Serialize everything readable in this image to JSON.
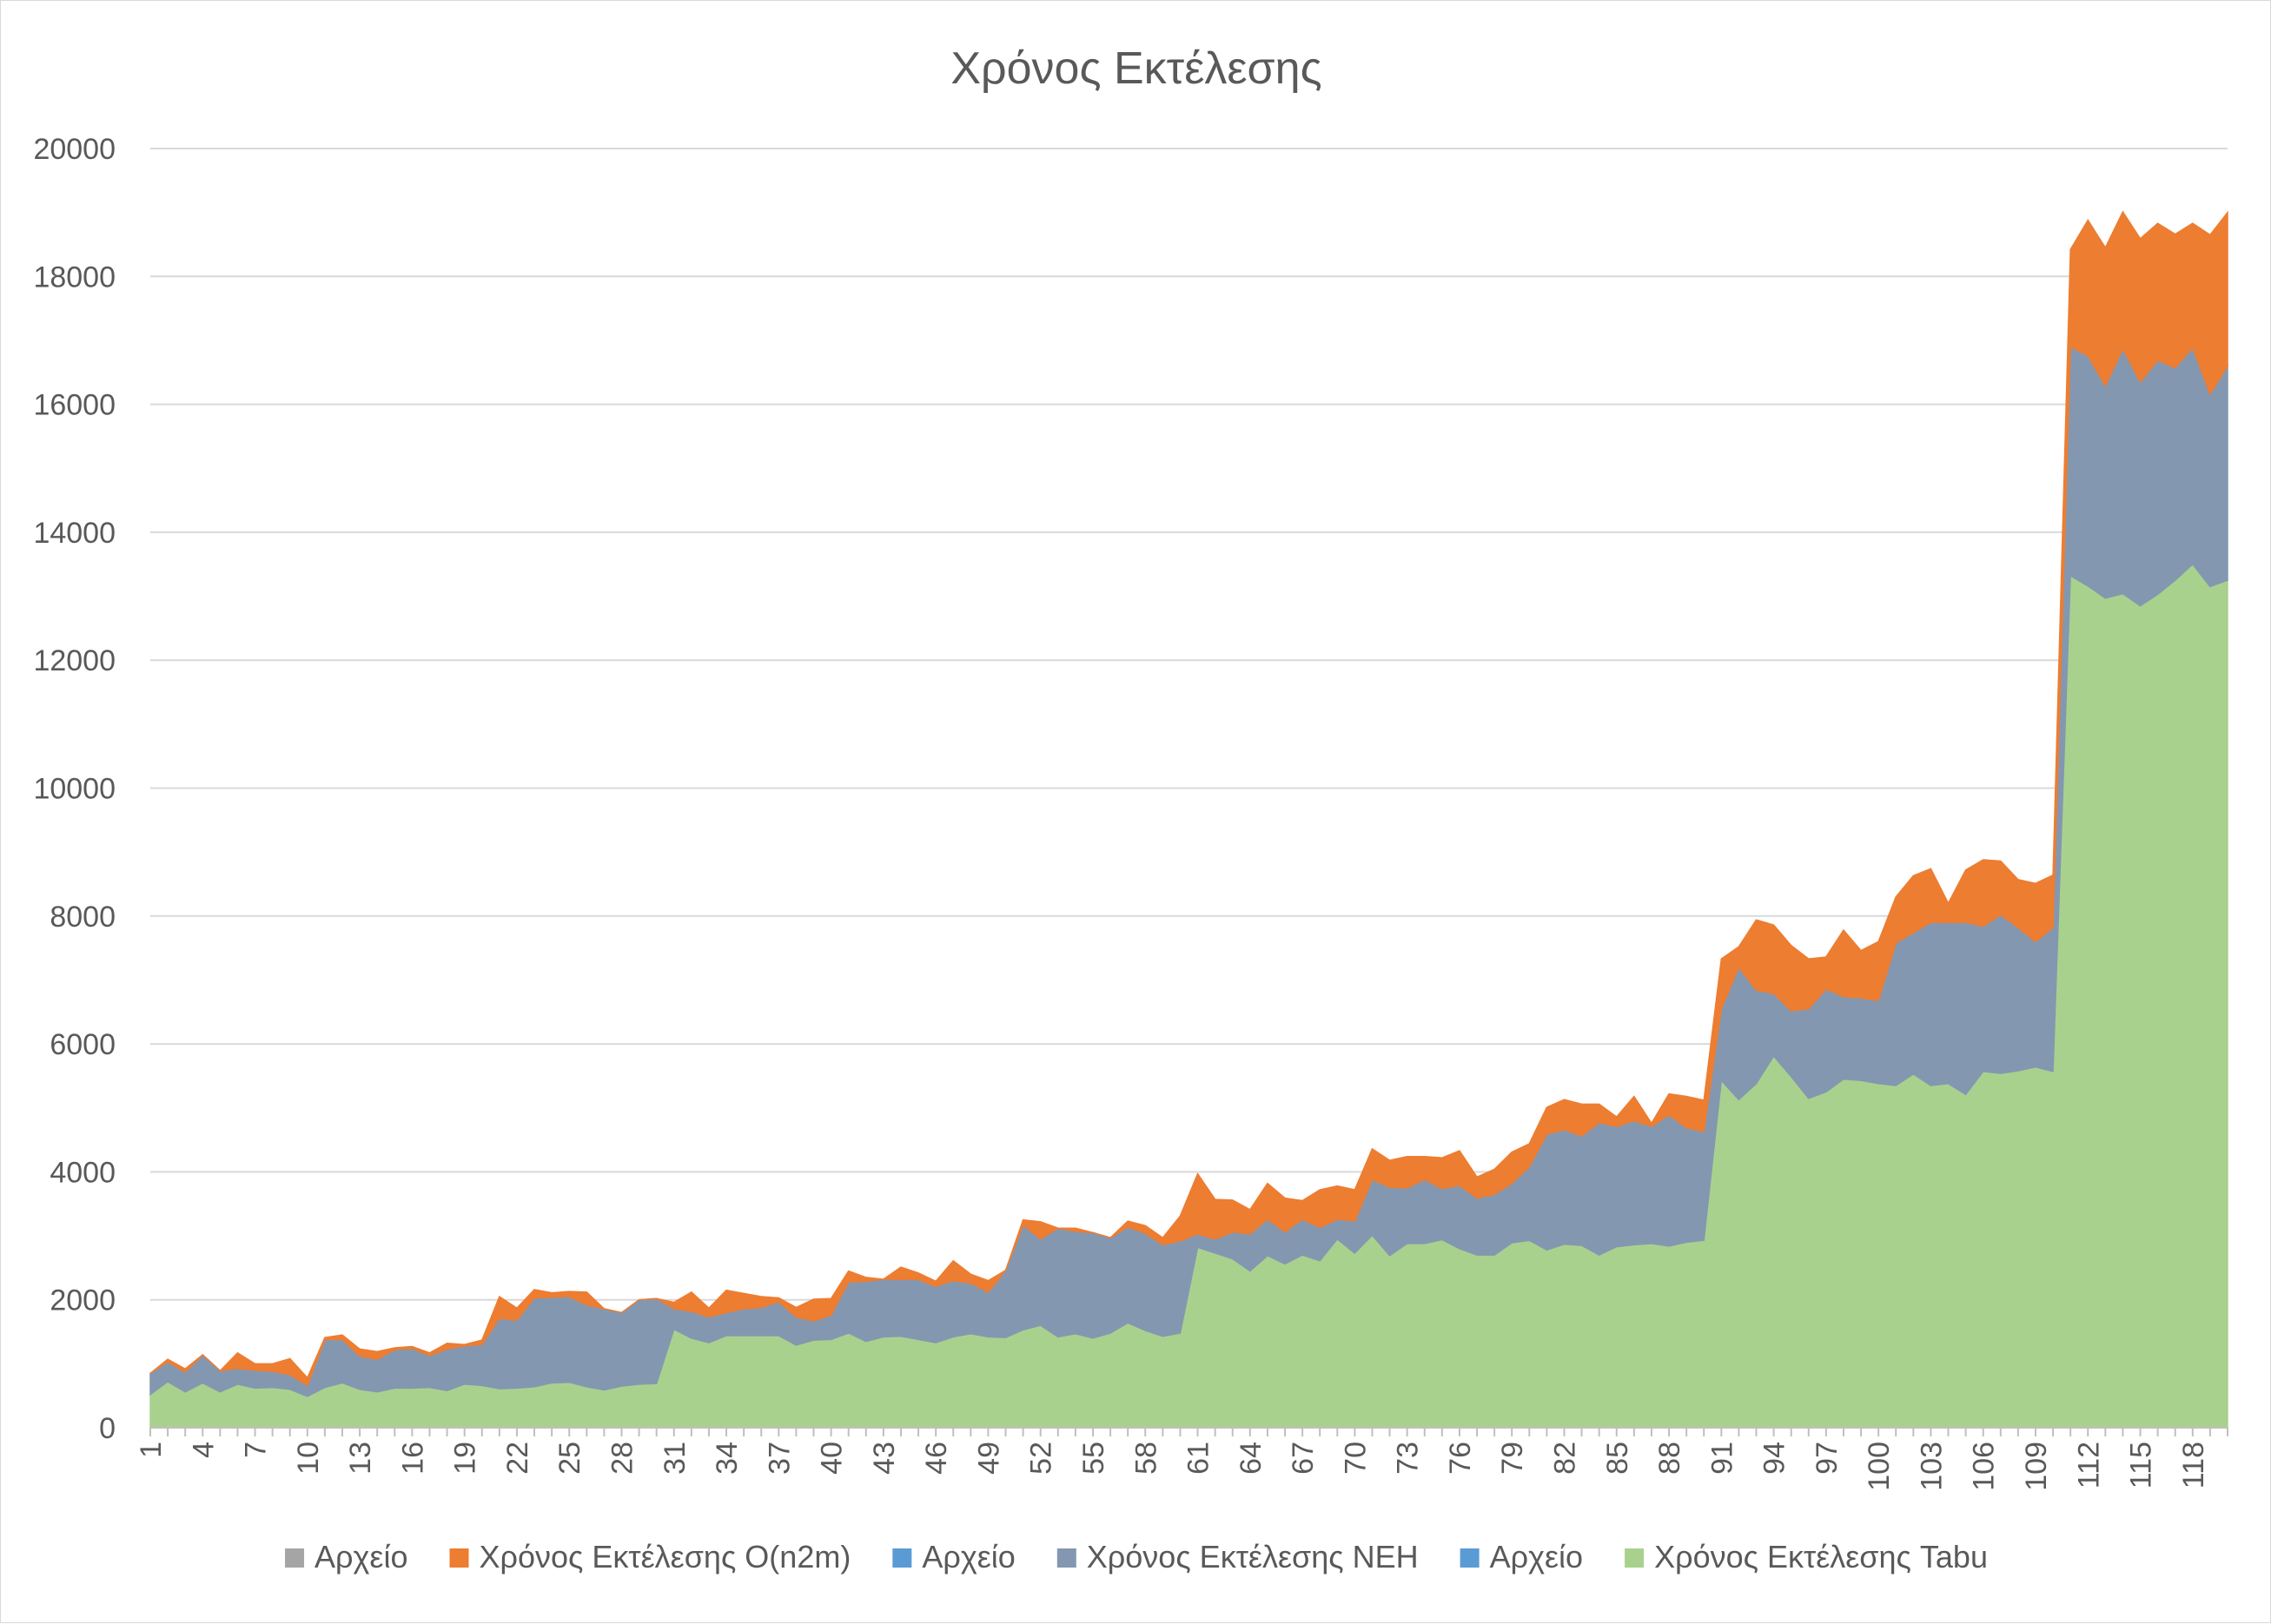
{
  "chart_data": {
    "type": "area",
    "stacked": true,
    "title": "Χρόνος Εκτέλεσης",
    "xlabel": "",
    "ylabel": "",
    "ylim": [
      0,
      20000
    ],
    "y_ticks": [
      0,
      2000,
      4000,
      6000,
      8000,
      10000,
      12000,
      14000,
      16000,
      18000,
      20000
    ],
    "grid": "horizontal",
    "legend_position": "bottom",
    "x": [
      1,
      2,
      3,
      4,
      5,
      6,
      7,
      8,
      9,
      10,
      11,
      12,
      13,
      14,
      15,
      16,
      17,
      18,
      19,
      20,
      21,
      22,
      23,
      24,
      25,
      26,
      27,
      28,
      29,
      30,
      31,
      32,
      33,
      34,
      35,
      36,
      37,
      38,
      39,
      40,
      41,
      42,
      43,
      44,
      45,
      46,
      47,
      48,
      49,
      50,
      51,
      52,
      53,
      54,
      55,
      56,
      57,
      58,
      59,
      60,
      61,
      62,
      63,
      64,
      65,
      66,
      67,
      68,
      69,
      70,
      71,
      72,
      73,
      74,
      75,
      76,
      77,
      78,
      79,
      80,
      81,
      82,
      83,
      84,
      85,
      86,
      87,
      88,
      89,
      90,
      91,
      92,
      93,
      94,
      95,
      96,
      97,
      98,
      99,
      100,
      101,
      102,
      103,
      104,
      105,
      106,
      107,
      108,
      109,
      110,
      111,
      112,
      113,
      114,
      115,
      116,
      117,
      118,
      119,
      120
    ],
    "x_tick_labels": [
      "1",
      "4",
      "7",
      "10",
      "13",
      "16",
      "19",
      "22",
      "25",
      "28",
      "31",
      "34",
      "37",
      "40",
      "43",
      "46",
      "49",
      "52",
      "55",
      "58",
      "61",
      "64",
      "67",
      "70",
      "73",
      "76",
      "79",
      "82",
      "85",
      "88",
      "91",
      "94",
      "97",
      "100",
      "103",
      "106",
      "109",
      "112",
      "115",
      "118"
    ],
    "legend": [
      {
        "name": "Αρχείο",
        "color": "#a5a5a5"
      },
      {
        "name": "Χρόνος Εκτέλεσης O(n2m)",
        "color": "#ed7d31"
      },
      {
        "name": "Αρχείο",
        "color": "#5b9bd5"
      },
      {
        "name": "Χρόνος Εκτέλεσης ΝΕΗ",
        "color": "#8497b0"
      },
      {
        "name": "Αρχείο",
        "color": "#5b9bd5"
      },
      {
        "name": "Χρόνος Εκτέλεσης Tabu",
        "color": "#a9d18e"
      }
    ],
    "series": [
      {
        "name": "Χρόνος Εκτέλεσης Tabu",
        "color": "#a9d18e",
        "values": [
          520,
          720,
          560,
          700,
          560,
          680,
          620,
          630,
          600,
          490,
          630,
          700,
          600,
          560,
          620,
          620,
          630,
          580,
          680,
          660,
          610,
          620,
          640,
          700,
          710,
          640,
          590,
          650,
          680,
          690,
          1540,
          1400,
          1330,
          1440,
          1440,
          1440,
          1440,
          1290,
          1370,
          1380,
          1480,
          1350,
          1420,
          1430,
          1380,
          1330,
          1420,
          1470,
          1420,
          1410,
          1530,
          1600,
          1420,
          1470,
          1400,
          1480,
          1640,
          1520,
          1430,
          1480,
          2820,
          2730,
          2640,
          2450,
          2690,
          2560,
          2700,
          2610,
          2950,
          2730,
          3010,
          2690,
          2880,
          2880,
          2940,
          2800,
          2700,
          2700,
          2890,
          2930,
          2780,
          2870,
          2850,
          2700,
          2830,
          2860,
          2880,
          2840,
          2900,
          2930,
          5430,
          5130,
          5380,
          5810,
          5490,
          5150,
          5250,
          5450,
          5430,
          5380,
          5350,
          5530,
          5350,
          5380,
          5210,
          5570,
          5540,
          5580,
          5640,
          5570,
          13320,
          13160,
          12970,
          13040,
          12850,
          13030,
          13250,
          13500,
          13150,
          13250
        ]
      },
      {
        "name": "Χρόνος Εκτέλεσης ΝΕΗ",
        "color": "#8497b0",
        "values": [
          330,
          310,
          310,
          440,
          330,
          250,
          280,
          250,
          230,
          170,
          750,
          680,
          520,
          510,
          600,
          620,
          500,
          650,
          600,
          640,
          1100,
          1060,
          1390,
          1340,
          1340,
          1280,
          1270,
          1150,
          1320,
          1330,
          320,
          420,
          400,
          360,
          420,
          440,
          530,
          440,
          300,
          380,
          800,
          940,
          900,
          890,
          940,
          880,
          880,
          790,
          700,
          1050,
          1640,
          1350,
          1700,
          1600,
          1650,
          1490,
          1500,
          1520,
          1430,
          1440,
          210,
          220,
          420,
          580,
          570,
          500,
          560,
          520,
          310,
          500,
          870,
          1070,
          870,
          1000,
          800,
          990,
          890,
          950,
          930,
          1150,
          1810,
          1790,
          1710,
          2070,
          1880,
          1940,
          1830,
          2050,
          1790,
          1700,
          1120,
          2070,
          1460,
          980,
          1030,
          1400,
          1610,
          1290,
          1290,
          1300,
          2230,
          2210,
          2550,
          2520,
          2690,
          2270,
          2480,
          2240,
          1960,
          2250,
          3580,
          3600,
          3320,
          3830,
          3500,
          3660,
          3320,
          3390,
          3010,
          3350
        ]
      },
      {
        "name": "Χρόνος Εκτέλεσης O(n2m)",
        "color": "#ed7d31",
        "values": [
          0,
          40,
          50,
          0,
          0,
          240,
          100,
          120,
          250,
          120,
          30,
          70,
          110,
          120,
          30,
          30,
          40,
          90,
          20,
          70,
          340,
          190,
          130,
          70,
          80,
          200,
          0,
          0,
          0,
          0,
          100,
          300,
          140,
          350,
          240,
          170,
          60,
          150,
          340,
          260,
          170,
          60,
          0,
          190,
          100,
          80,
          310,
          140,
          180,
          0,
          80,
          270,
          0,
          50,
          0,
          0,
          90,
          120,
          110,
          390,
          940,
          620,
          500,
          380,
          560,
          530,
          290,
          590,
          520,
          490,
          480,
          420,
          490,
          360,
          480,
          540,
          330,
          390,
          490,
          360,
          420,
          470,
          500,
          290,
          150,
          380,
          50,
          330,
          490,
          490,
          780,
          320,
          1100,
          1070,
          1020,
          780,
          500,
          1040,
          740,
          920,
          720,
          890,
          840,
          300,
          820,
          1040,
          840,
          750,
          910,
          820,
          1520,
          2120,
          2160,
          2140,
          2240,
          2140,
          2090,
          1940,
          2490,
          2400
        ]
      }
    ]
  }
}
